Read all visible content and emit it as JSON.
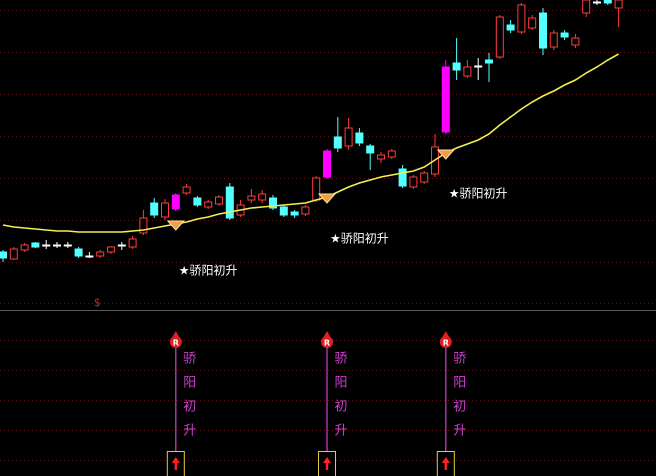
{
  "chart_data": {
    "type": "candlestick",
    "ylim": [
      0,
      310
    ],
    "up_color": "#ff3c3c",
    "down_color": "#54ffff",
    "flat_color": "#ffffff",
    "highlight_color": "#ff00ff",
    "open": [
      58,
      51,
      60,
      67,
      65,
      65,
      65,
      61,
      54,
      54,
      58,
      65,
      63,
      77,
      107,
      93,
      101,
      117,
      112,
      103,
      106,
      123,
      95,
      110,
      110,
      112,
      103,
      98,
      96,
      110,
      133,
      173,
      164,
      177,
      164,
      151,
      153,
      141,
      123,
      128,
      136,
      178,
      247,
      234,
      244,
      250,
      253,
      285,
      278,
      282,
      297,
      263,
      277,
      265,
      297,
      308,
      310,
      302
    ],
    "high": [
      60,
      63,
      67,
      68,
      70,
      68,
      68,
      63,
      58,
      60,
      64,
      68,
      74,
      100,
      112,
      111,
      117,
      126,
      114,
      110,
      115,
      127,
      110,
      121,
      120,
      115,
      105,
      100,
      105,
      134,
      161,
      193,
      192,
      182,
      166,
      158,
      161,
      145,
      135,
      139,
      176,
      250,
      272,
      250,
      252,
      257,
      295,
      290,
      307,
      295,
      302,
      280,
      280,
      276,
      310,
      310,
      310,
      310
    ],
    "low": [
      48,
      50,
      58,
      62,
      61,
      62,
      62,
      52,
      52,
      52,
      56,
      60,
      61,
      75,
      92,
      90,
      99,
      115,
      103,
      101,
      104,
      90,
      93,
      107,
      107,
      100,
      93,
      92,
      94,
      108,
      131,
      158,
      160,
      164,
      140,
      147,
      151,
      122,
      121,
      126,
      133,
      176,
      230,
      232,
      230,
      228,
      251,
      277,
      276,
      280,
      255,
      260,
      270,
      262,
      293,
      305,
      305,
      283
    ],
    "close": [
      52,
      61,
      65,
      63,
      65,
      65,
      65,
      54,
      54,
      58,
      63,
      65,
      71,
      92,
      95,
      107,
      115,
      123,
      105,
      108,
      113,
      92,
      105,
      114,
      116,
      102,
      95,
      95,
      103,
      132,
      159,
      162,
      182,
      167,
      157,
      155,
      159,
      124,
      133,
      137,
      163,
      243,
      240,
      243,
      244,
      247,
      293,
      280,
      305,
      292,
      262,
      277,
      273,
      272,
      310,
      308,
      307,
      310
    ],
    "ma": {
      "color": "#f0f050",
      "values": [
        85,
        83,
        82,
        81,
        80,
        79,
        79,
        78,
        78,
        78,
        78,
        78,
        79,
        80,
        82,
        84,
        86,
        88,
        91,
        93,
        96,
        98,
        100,
        102,
        103,
        104,
        105,
        106,
        107,
        110,
        113,
        118,
        123,
        127,
        130,
        133,
        135,
        137,
        139,
        143,
        150,
        157,
        162,
        166,
        170,
        176,
        185,
        193,
        201,
        208,
        214,
        219,
        225,
        230,
        237,
        243,
        250,
        256
      ]
    },
    "signals": [
      {
        "index": 16,
        "label": "★骄阳初升",
        "badge": "R",
        "vertical": [
          "骄",
          "阳",
          "初",
          "升"
        ]
      },
      {
        "index": 30,
        "label": "★骄阳初升",
        "badge": "R",
        "vertical": [
          "骄",
          "阳",
          "初",
          "升"
        ]
      },
      {
        "index": 41,
        "label": "★骄阳初升",
        "badge": "R",
        "vertical": [
          "骄",
          "阳",
          "初",
          "升"
        ]
      }
    ],
    "marker": {
      "index": 9,
      "text": "$"
    }
  }
}
